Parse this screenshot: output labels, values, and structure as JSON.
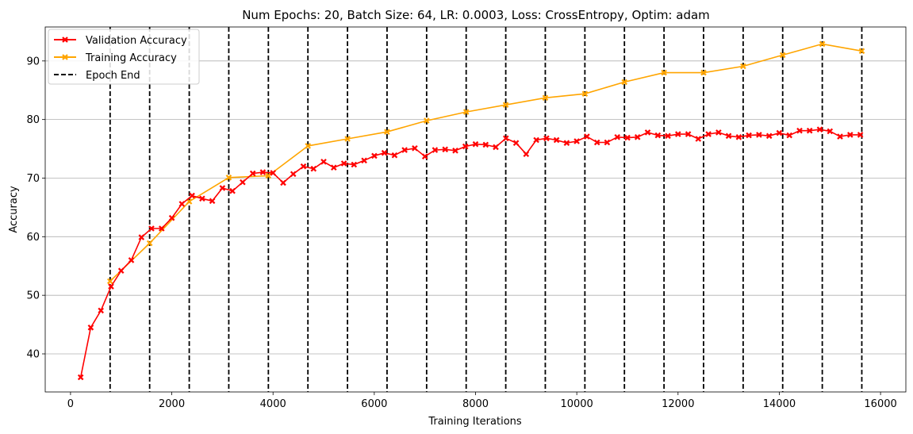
{
  "chart_data": {
    "type": "line",
    "title": "Num Epochs: 20, Batch Size: 64, LR: 0.0003, Loss: CrossEntropy, Optim: adam",
    "xlabel": "Training Iterations",
    "ylabel": "Accuracy",
    "xlim": [
      -500,
      16500
    ],
    "ylim": [
      33.5,
      95.8
    ],
    "xticks": [
      0,
      2000,
      4000,
      6000,
      8000,
      10000,
      12000,
      14000,
      16000
    ],
    "yticks": [
      40,
      50,
      60,
      70,
      80,
      90
    ],
    "grid": "horizontal",
    "legend_position": "top-left",
    "series": [
      {
        "name": "Validation Accuracy",
        "color": "#ff0000",
        "marker": "X",
        "x": [
          200,
          400,
          600,
          800,
          1000,
          1200,
          1400,
          1600,
          1800,
          2000,
          2200,
          2400,
          2600,
          2800,
          3000,
          3200,
          3400,
          3600,
          3800,
          4000,
          4200,
          4400,
          4600,
          4800,
          5000,
          5200,
          5400,
          5600,
          5800,
          6000,
          6200,
          6400,
          6600,
          6800,
          7000,
          7200,
          7400,
          7600,
          7800,
          8000,
          8200,
          8400,
          8600,
          8800,
          9000,
          9200,
          9400,
          9600,
          9800,
          10000,
          10200,
          10400,
          10600,
          10800,
          11000,
          11200,
          11400,
          11600,
          11800,
          12000,
          12200,
          12400,
          12600,
          12800,
          13000,
          13200,
          13400,
          13600,
          13800,
          14000,
          14200,
          14400,
          14600,
          14800,
          15000,
          15200,
          15400,
          15600
        ],
        "y": [
          36.0,
          44.5,
          47.4,
          51.5,
          54.2,
          56.0,
          59.9,
          61.4,
          61.4,
          63.2,
          65.6,
          67.0,
          66.5,
          66.1,
          68.3,
          67.8,
          69.3,
          70.8,
          71.0,
          70.9,
          69.2,
          70.7,
          72.0,
          71.6,
          72.8,
          71.8,
          72.5,
          72.3,
          73.0,
          73.8,
          74.3,
          73.9,
          74.8,
          75.1,
          73.7,
          74.8,
          74.9,
          74.7,
          75.4,
          75.8,
          75.7,
          75.3,
          76.8,
          76.0,
          74.1,
          76.5,
          76.8,
          76.5,
          76.0,
          76.3,
          77.1,
          76.1,
          76.1,
          77.0,
          76.9,
          77.0,
          77.8,
          77.3,
          77.2,
          77.5,
          77.5,
          76.7,
          77.5,
          77.8,
          77.2,
          77.0,
          77.3,
          77.4,
          77.2,
          77.7,
          77.3,
          78.1,
          78.1,
          78.3,
          78.0,
          77.1,
          77.4,
          77.4
        ]
      },
      {
        "name": "Training Accuracy",
        "color": "#ffa500",
        "marker": "X",
        "x": [
          782,
          1563,
          2345,
          3126,
          3908,
          4689,
          5471,
          6252,
          7034,
          7815,
          8597,
          9378,
          10160,
          10941,
          11723,
          12504,
          13286,
          14067,
          14849,
          15630
        ],
        "y": [
          52.4,
          58.9,
          66.0,
          70.1,
          70.4,
          75.5,
          76.7,
          77.9,
          79.8,
          81.3,
          82.5,
          83.7,
          84.4,
          86.4,
          88.0,
          88.0,
          89.1,
          91.0,
          92.9,
          91.7
        ]
      }
    ],
    "epoch_end": {
      "name": "Epoch End",
      "color": "#000000",
      "style": "dashed",
      "x": [
        782,
        1563,
        2345,
        3126,
        3908,
        4689,
        5471,
        6252,
        7034,
        7815,
        8597,
        9378,
        10160,
        10941,
        11723,
        12504,
        13286,
        14067,
        14849,
        15630
      ]
    }
  }
}
